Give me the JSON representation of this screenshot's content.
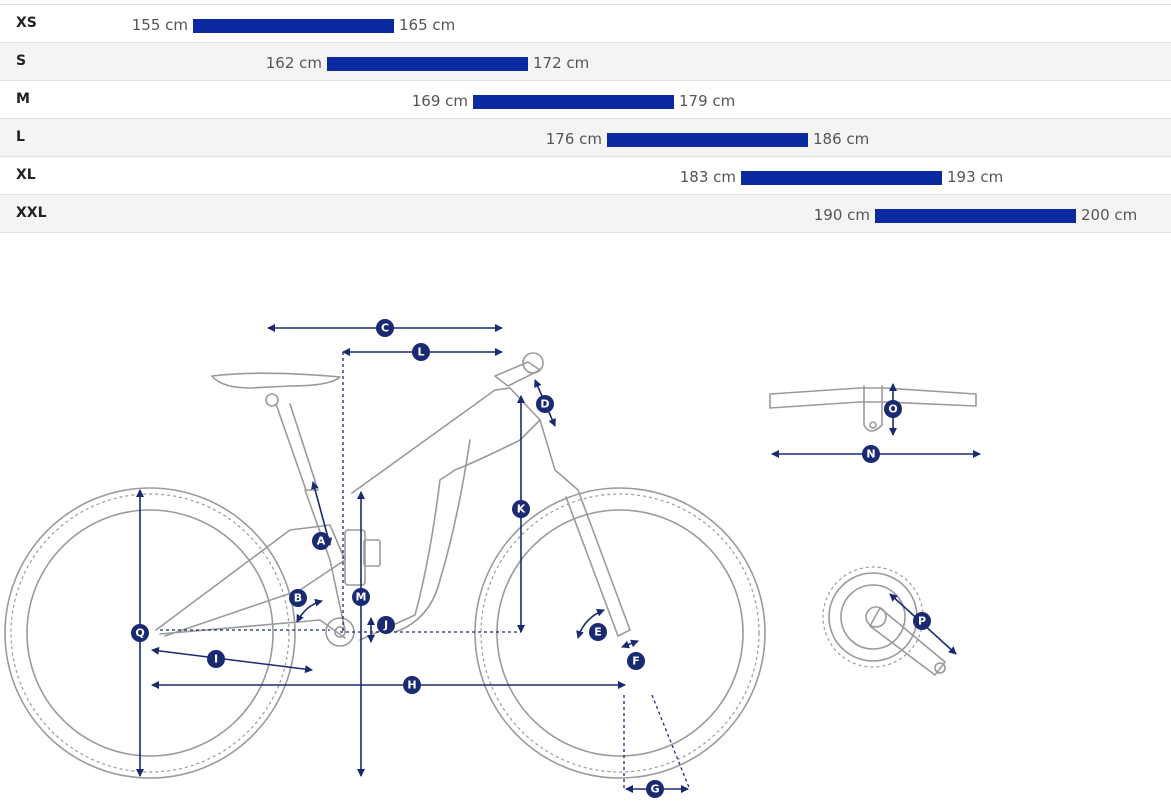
{
  "sizes": [
    {
      "name": "XS",
      "min": "155 cm",
      "max": "165 cm"
    },
    {
      "name": "S",
      "min": "162 cm",
      "max": "172 cm"
    },
    {
      "name": "M",
      "min": "169 cm",
      "max": "179 cm"
    },
    {
      "name": "L",
      "min": "176 cm",
      "max": "186 cm"
    },
    {
      "name": "XL",
      "min": "183 cm",
      "max": "193 cm"
    },
    {
      "name": "XXL",
      "min": "190 cm",
      "max": "200 cm"
    }
  ],
  "colors": {
    "range_bar": "#0b2aa0",
    "dimension": "#1a2a72",
    "frame": "#9a9a9a"
  },
  "geometry_labels": {
    "A": "A",
    "B": "B",
    "C": "C",
    "D": "D",
    "E": "E",
    "F": "F",
    "G": "G",
    "H": "H",
    "I": "I",
    "J": "J",
    "K": "K",
    "L": "L",
    "M": "M",
    "N": "N",
    "O": "O",
    "P": "P",
    "Q": "Q"
  }
}
